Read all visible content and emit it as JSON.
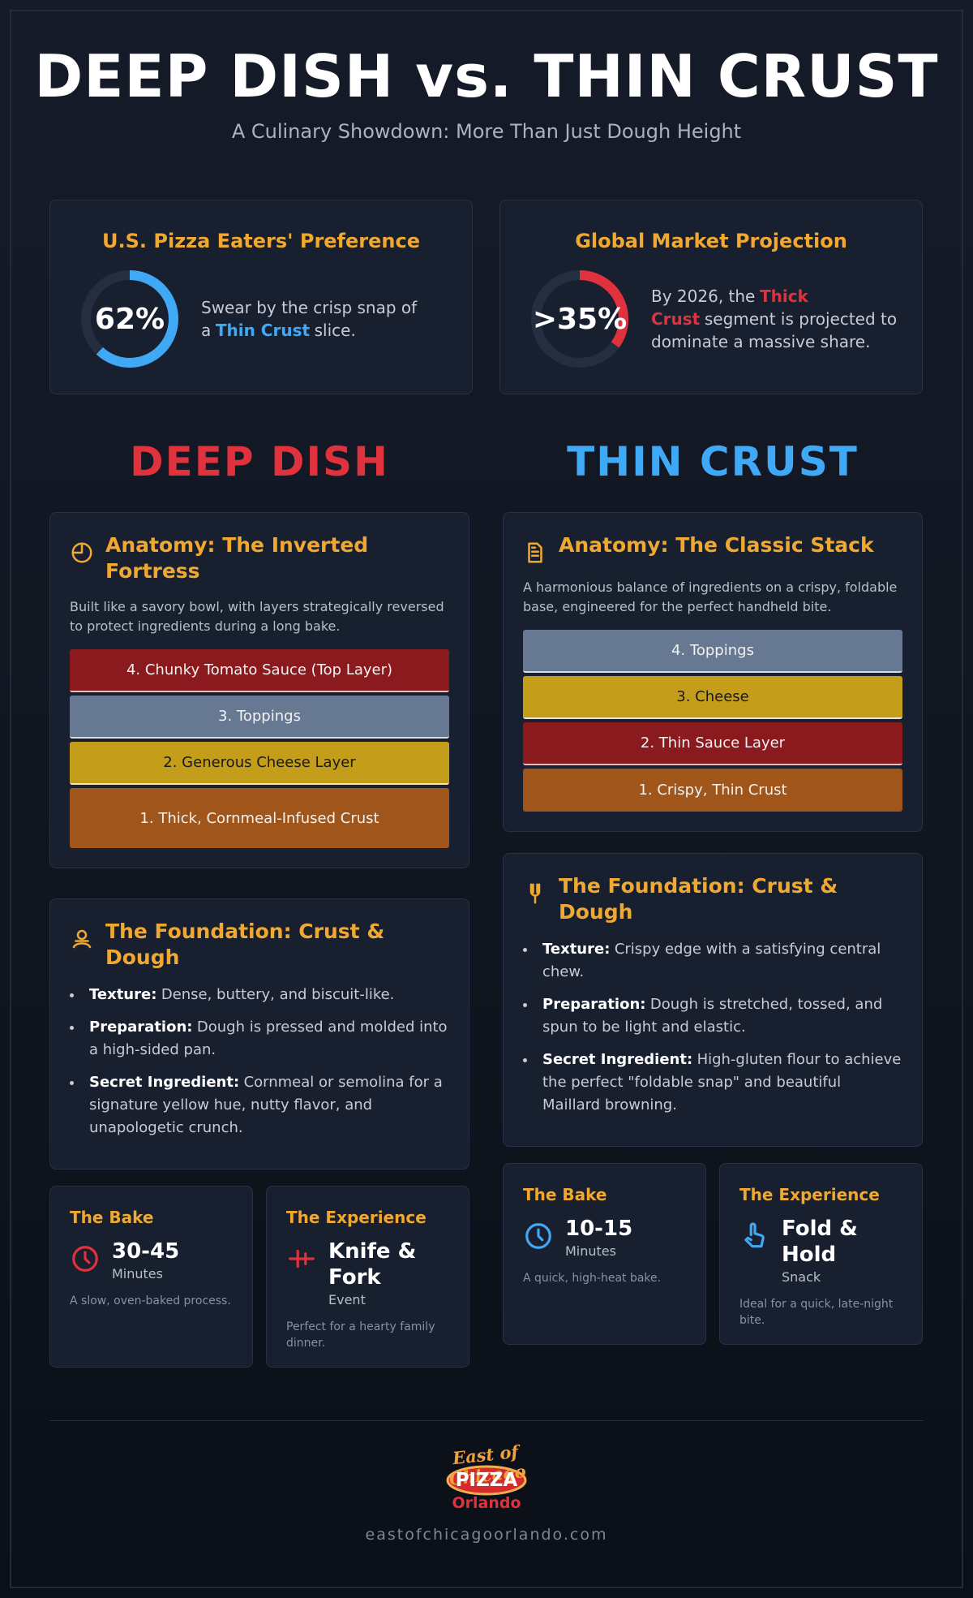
{
  "header": {
    "title": "DEEP DISH vs. THIN CRUST",
    "subtitle": "A Culinary Showdown: More Than Just Dough Height"
  },
  "stats": [
    {
      "title": "U.S. Pizza Eaters' Preference",
      "value": {
        "value": 62,
        "label": "62%"
      },
      "color": "#3fa9f5",
      "text": [
        "Swear by the crisp snap of a",
        "Thin Crust",
        "slice."
      ]
    },
    {
      "title": "Global Market Projection",
      "value": {
        "value": 35,
        "label": ">35%"
      },
      "color": "#e0323c",
      "text": [
        "By 2026, the",
        "Thick Crust",
        "segment is projected to dominate a massive share."
      ]
    }
  ],
  "columns": [
    {
      "heading": "DEEP DISH",
      "color": "#e0323c",
      "anatomy": {
        "title": "Anatomy: The Inverted Fortress",
        "description": "Built like a savory bowl, with layers strategically reversed to protect ingredients during a long bake.",
        "layers": [
          {
            "label": "4. Chunky Tomato Sauce (Top Layer)",
            "color": "#8b1a1f"
          },
          {
            "label": "3. Toppings",
            "color": "#667892"
          },
          {
            "label": "2. Generous Cheese Layer",
            "color": "#c49d1b"
          },
          {
            "label": "1. Thick, Cornmeal-Infused Crust",
            "color": "#a0561a"
          }
        ]
      },
      "foundation": {
        "title": "The Foundation: Crust & Dough",
        "items": [
          {
            "label": "Texture:",
            "text": "Dense, buttery, and biscuit-like."
          },
          {
            "label": "Preparation:",
            "text": "Dough is pressed and molded into a high-sided pan."
          },
          {
            "label": "Secret Ingredient:",
            "text": "Cornmeal or semolina for a signature yellow hue, nutty flavor, and unapologetic crunch."
          }
        ]
      },
      "bake": {
        "title": "The Bake",
        "value": "30-45",
        "unit": "Minutes",
        "note": "A slow, oven-baked process."
      },
      "experience": {
        "title": "The Experience",
        "value": "Knife & Fork",
        "unit": "Event",
        "note": "Perfect for a hearty family dinner."
      }
    },
    {
      "heading": "THIN CRUST",
      "color": "#3fa9f5",
      "anatomy": {
        "title": "Anatomy: The Classic Stack",
        "description": "A harmonious balance of ingredients on a crispy, foldable base, engineered for the perfect handheld bite.",
        "layers": [
          {
            "label": "4. Toppings",
            "color": "#667892"
          },
          {
            "label": "3. Cheese",
            "color": "#c49d1b"
          },
          {
            "label": "2. Thin Sauce Layer",
            "color": "#8b1a1f"
          },
          {
            "label": "1. Crispy, Thin Crust",
            "color": "#a0561a"
          }
        ]
      },
      "foundation": {
        "title": "The Foundation: Crust & Dough",
        "items": [
          {
            "label": "Texture:",
            "text": "Crispy edge with a satisfying central chew."
          },
          {
            "label": "Preparation:",
            "text": "Dough is stretched, tossed, and spun to be light and elastic."
          },
          {
            "label": "Secret Ingredient:",
            "text": "High-gluten flour to achieve the perfect \"foldable snap\" and beautiful Maillard browning."
          }
        ]
      },
      "bake": {
        "title": "The Bake",
        "value": "10-15",
        "unit": "Minutes",
        "note": "A quick, high-heat bake."
      },
      "experience": {
        "title": "The Experience",
        "value": "Fold & Hold",
        "unit": "Snack",
        "note": "Ideal for a quick, late-night bite."
      }
    }
  ],
  "footer": {
    "logo": {
      "top": "East of Chicago",
      "middle": "PIZZA",
      "bottom": "Orlando"
    },
    "url": "eastofchicagoorlando.com"
  }
}
